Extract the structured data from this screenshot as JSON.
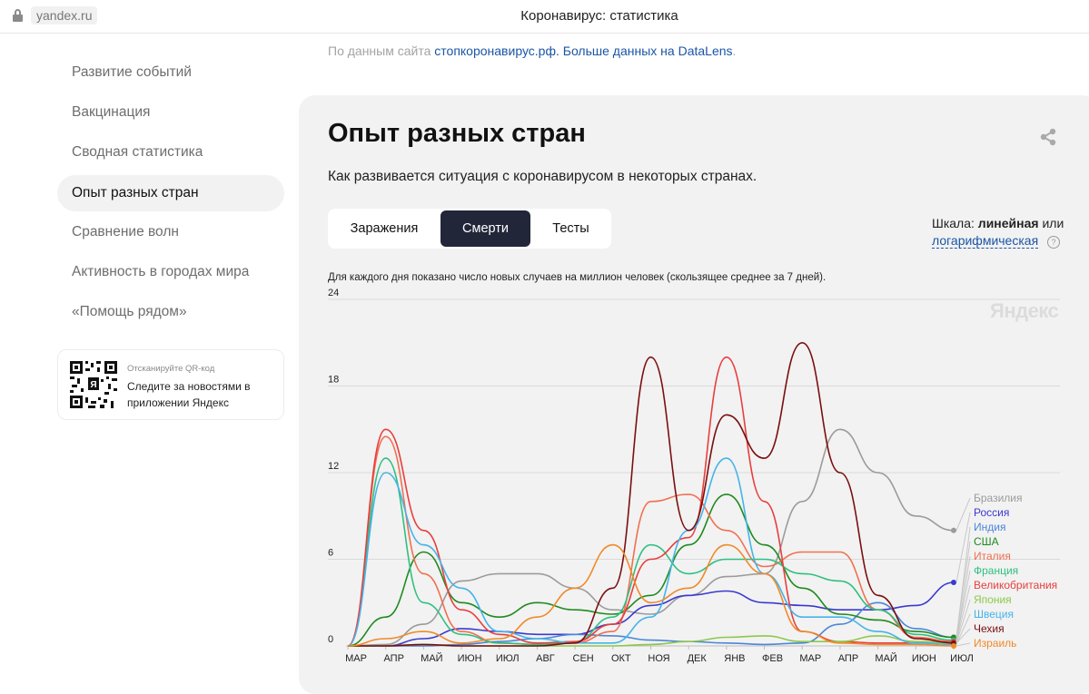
{
  "browser": {
    "url": "yandex.ru",
    "title": "Коронавирус: статистика"
  },
  "source": {
    "prefix": "По данным сайта",
    "link1": "стопкоронавирус.рф.",
    "link2": "Больше данных на DataLens",
    "suffix": "."
  },
  "sidebar": {
    "items": [
      {
        "label": "Развитие событий"
      },
      {
        "label": "Вакцинация"
      },
      {
        "label": "Сводная статистика"
      },
      {
        "label": "Опыт разных стран",
        "active": true
      },
      {
        "label": "Сравнение волн"
      },
      {
        "label": "Активность в городах мира"
      },
      {
        "label": "«Помощь рядом»"
      }
    ],
    "qr": {
      "caption": "Отсканируйте QR-код",
      "text": "Следите за новостями в приложении Яндекс"
    }
  },
  "card": {
    "title": "Опыт разных стран",
    "subtitle": "Как развивается ситуация с коронавирусом в некоторых странах.",
    "tabs": [
      {
        "label": "Заражения",
        "active": false
      },
      {
        "label": "Смерти",
        "active": true
      },
      {
        "label": "Тесты",
        "active": false
      }
    ],
    "scale": {
      "prefix": "Шкала:",
      "current": "линейная",
      "or": "или",
      "alt": "логарифмическая",
      "help": "?"
    },
    "note": "Для каждого дня показано число новых случаев на миллион человек (скользящее среднее за 7 дней).",
    "watermark": "Яндекс"
  },
  "chart_data": {
    "type": "line",
    "x": [
      "МАР",
      "АПР",
      "МАЙ",
      "ИЮН",
      "ИЮЛ",
      "АВГ",
      "СЕН",
      "ОКТ",
      "НОЯ",
      "ДЕК",
      "ЯНВ",
      "ФЕВ",
      "МАР",
      "АПР",
      "МАЙ",
      "ИЮН",
      "ИЮЛ"
    ],
    "y_ticks": [
      0,
      6,
      12,
      18,
      24
    ],
    "ylim": [
      0,
      24
    ],
    "grid": true,
    "legend_position": "right",
    "series": [
      {
        "name": "Бразилия",
        "color": "#9b9b9b",
        "values": [
          0,
          0.1,
          1.5,
          4.5,
          5,
          5,
          4,
          2.5,
          2.2,
          3.5,
          4.8,
          5,
          10,
          15,
          12,
          9,
          8
        ]
      },
      {
        "name": "Россия",
        "color": "#3a3acf",
        "values": [
          0,
          0,
          0.5,
          1.2,
          1,
          0.8,
          0.8,
          1.5,
          2.8,
          3.5,
          3.8,
          3,
          2.8,
          2.5,
          2.5,
          2.8,
          4.4
        ]
      },
      {
        "name": "Индия",
        "color": "#4a86d8",
        "values": [
          0,
          0,
          0,
          0.1,
          0.3,
          0.5,
          0.8,
          0.7,
          0.4,
          0.3,
          0.2,
          0.1,
          0.2,
          1.5,
          3,
          1.2,
          0.6
        ]
      },
      {
        "name": "США",
        "color": "#1f8a1f",
        "values": [
          0,
          2,
          6.5,
          3,
          2,
          3,
          2.5,
          2.2,
          3.5,
          7,
          10.5,
          7,
          4,
          2.2,
          1.8,
          1,
          0.6
        ]
      },
      {
        "name": "Италия",
        "color": "#f07050",
        "values": [
          0,
          14.5,
          5,
          1,
          0.2,
          0.1,
          0.2,
          1,
          10,
          10.5,
          8,
          5.5,
          6.5,
          6.5,
          2.5,
          0.6,
          0.3
        ]
      },
      {
        "name": "Франция",
        "color": "#2fbf80",
        "values": [
          0,
          13,
          3,
          0.8,
          0.2,
          0.1,
          0.3,
          2,
          7,
          5,
          6,
          6,
          5,
          4.5,
          2.5,
          0.8,
          0.4
        ]
      },
      {
        "name": "Великобритания",
        "color": "#e83e3e",
        "values": [
          0,
          15,
          8,
          2.5,
          0.8,
          0.2,
          0.3,
          1.5,
          6,
          7.5,
          20,
          10,
          1,
          0.3,
          0.2,
          0.2,
          0.3
        ]
      },
      {
        "name": "Япония",
        "color": "#8cc84b",
        "values": [
          0,
          0,
          0.1,
          0,
          0,
          0,
          0,
          0,
          0.1,
          0.3,
          0.6,
          0.7,
          0.3,
          0.3,
          0.7,
          0.3,
          0.2
        ]
      },
      {
        "name": "Швеция",
        "color": "#45b4e8",
        "values": [
          0,
          12,
          7,
          4,
          1,
          0.5,
          0.2,
          0.2,
          2,
          8,
          13,
          5,
          2,
          2,
          1,
          0.2,
          0.1
        ]
      },
      {
        "name": "Чехия",
        "color": "#7a0f0f",
        "values": [
          0,
          0,
          0.1,
          0,
          0,
          0,
          0.2,
          4,
          20,
          8,
          16,
          13,
          21,
          12,
          3.5,
          0.5,
          0.2
        ]
      },
      {
        "name": "Израиль",
        "color": "#f08a28",
        "values": [
          0,
          0.5,
          1,
          0.2,
          0.5,
          2,
          4,
          7,
          3,
          4,
          7,
          5,
          1,
          0.2,
          0.1,
          0.1,
          0
        ]
      }
    ]
  }
}
